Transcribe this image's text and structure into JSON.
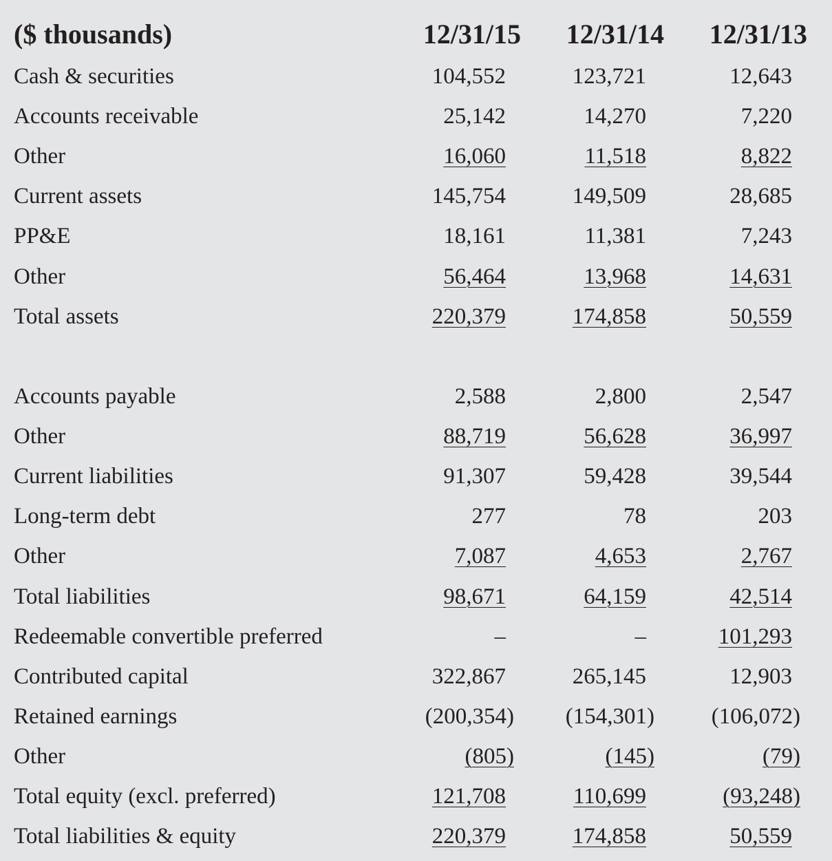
{
  "header": {
    "unit_label": "($ thousands)",
    "columns": [
      "12/31/15",
      "12/31/14",
      "12/31/13"
    ]
  },
  "assets": [
    {
      "label": "Cash & securities",
      "values": [
        "104,552",
        "123,721",
        "12,643"
      ],
      "underline": false
    },
    {
      "label": "Accounts receivable",
      "values": [
        "25,142",
        "14,270",
        "7,220"
      ],
      "underline": false
    },
    {
      "label": "Other",
      "values": [
        "16,060",
        "11,518",
        "8,822"
      ],
      "underline": true
    },
    {
      "label": "Current assets",
      "values": [
        "145,754",
        "149,509",
        "28,685"
      ],
      "underline": false
    },
    {
      "label": "PP&E",
      "values": [
        "18,161",
        "11,381",
        "7,243"
      ],
      "underline": false
    },
    {
      "label": "Other",
      "values": [
        "56,464",
        "13,968",
        "14,631"
      ],
      "underline": true
    },
    {
      "label": "Total assets",
      "values": [
        "220,379",
        "174,858",
        "50,559"
      ],
      "underline": true
    }
  ],
  "liabilities": [
    {
      "label": "Accounts payable",
      "values": [
        "2,588",
        "2,800",
        "2,547"
      ],
      "underline": false
    },
    {
      "label": "Other",
      "values": [
        "88,719",
        "56,628",
        "36,997"
      ],
      "underline": true
    },
    {
      "label": "Current liabilities",
      "values": [
        "91,307",
        "59,428",
        "39,544"
      ],
      "underline": false
    },
    {
      "label": "Long-term debt",
      "values": [
        "277",
        "78",
        "203"
      ],
      "underline": false
    },
    {
      "label": "Other",
      "values": [
        "7,087",
        "4,653",
        "2,767"
      ],
      "underline": true
    },
    {
      "label": "Total liabilities",
      "values": [
        "98,671",
        "64,159",
        "42,514"
      ],
      "underline": true
    },
    {
      "label": "Redeemable convertible preferred",
      "values": [
        "–",
        "–",
        "101,293"
      ],
      "underline": true
    },
    {
      "label": "Contributed capital",
      "values": [
        "322,867",
        "265,145",
        "12,903"
      ],
      "underline": false
    },
    {
      "label": "Retained earnings",
      "values": [
        "(200,354)",
        "(154,301)",
        "(106,072)"
      ],
      "underline": false
    },
    {
      "label": "Other",
      "values": [
        "(805)",
        "(145)",
        "(79)"
      ],
      "underline": true
    },
    {
      "label": "Total equity (excl. preferred)",
      "values": [
        "121,708",
        "110,699",
        "(93,248)"
      ],
      "underline": true
    },
    {
      "label": "Total liabilities & equity",
      "values": [
        "220,379",
        "174,858",
        "50,559"
      ],
      "underline": true
    }
  ]
}
